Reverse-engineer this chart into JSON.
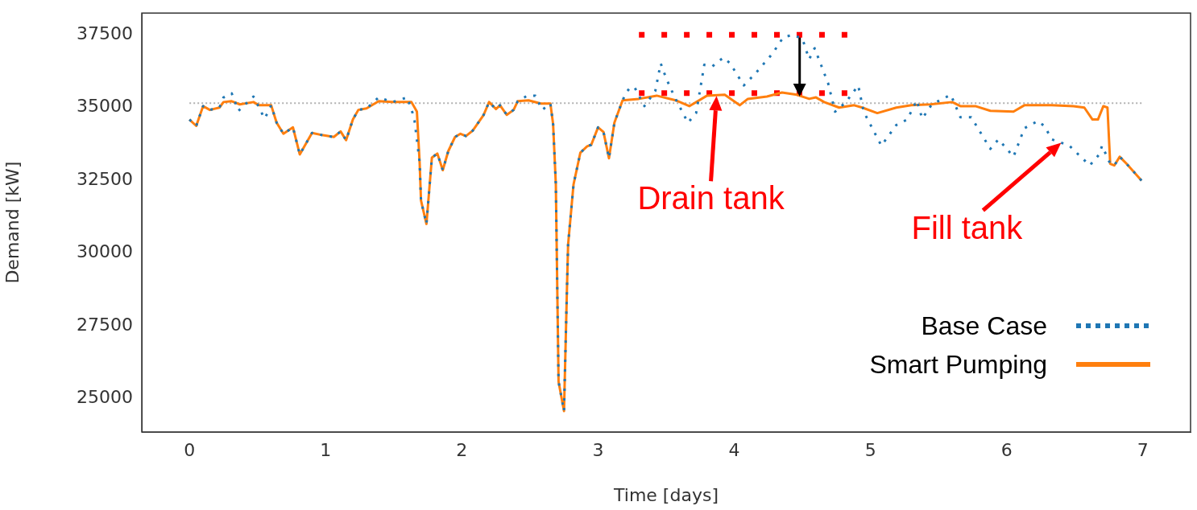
{
  "chart_data": {
    "type": "line",
    "xlabel": "Time [days]",
    "ylabel": "Demand [kW]",
    "xlim": [
      -0.35,
      7.35
    ],
    "xticks": [
      0,
      1,
      2,
      3,
      4,
      5,
      6,
      7
    ],
    "ylim": [
      23850,
      38250
    ],
    "yticks": [
      25000,
      27500,
      30000,
      32500,
      35000,
      37500
    ],
    "grid": false,
    "legend": "lower right",
    "ref_lines": [
      {
        "axis": "y",
        "value": 35150,
        "color": "#b0b0b0",
        "line_style": "dotted"
      }
    ],
    "annotations": [
      {
        "text": "Drain tank",
        "x": 3.87,
        "y": 35400
      },
      {
        "text": "Fill tank",
        "x": 6.4,
        "y": 33790
      }
    ],
    "series": [
      {
        "name": "Base Case",
        "color": "#1f77b4",
        "line_style": "dotted",
        "x": [
          0,
          0.05,
          0.1,
          0.15,
          0.22,
          0.25,
          0.31,
          0.36,
          0.47,
          0.52,
          0.55,
          0.58,
          0.6,
          0.64,
          0.69,
          0.76,
          0.81,
          0.9,
          0.98,
          1.06,
          1.11,
          1.15,
          1.2,
          1.24,
          1.3,
          1.39,
          1.49,
          1.6,
          1.65,
          1.69,
          1.7,
          1.74,
          1.78,
          1.82,
          1.86,
          1.9,
          1.95,
          1.99,
          2.03,
          2.08,
          2.16,
          2.2,
          2.25,
          2.28,
          2.33,
          2.38,
          2.41,
          2.48,
          2.54,
          2.59,
          2.65,
          2.67,
          2.69,
          2.71,
          2.75,
          2.77,
          2.78,
          2.82,
          2.87,
          2.92,
          2.95,
          3,
          3.04,
          3.08,
          3.12,
          3.18,
          3.21,
          3.24,
          3.27,
          3.34,
          3.42,
          3.46,
          3.5,
          3.56,
          3.66,
          3.72,
          3.78,
          3.84,
          3.92,
          3.97,
          4.07,
          4.16,
          4.28,
          4.36,
          4.43,
          4.5,
          4.55,
          4.59,
          4.69,
          4.74,
          4.82,
          4.91,
          4.95,
          5.08,
          5.19,
          5.27,
          5.34,
          5.38,
          5.45,
          5.59,
          5.66,
          5.74,
          5.88,
          5.94,
          6.05,
          6.13,
          6.23,
          6.28,
          6.33,
          6.46,
          6.61,
          6.68,
          6.7,
          6.76,
          6.79,
          6.83,
          6.88,
          6.99
        ],
        "values": [
          34590,
          34370,
          35050,
          34920,
          35000,
          35350,
          35490,
          34890,
          35380,
          34920,
          34620,
          34860,
          35080,
          34480,
          34100,
          34320,
          33390,
          34130,
          34050,
          33990,
          34180,
          33880,
          34590,
          34920,
          34970,
          35350,
          35190,
          35350,
          34650,
          33120,
          31810,
          31000,
          33280,
          33420,
          32850,
          33500,
          33990,
          34100,
          34020,
          34210,
          34750,
          35190,
          34950,
          35080,
          34750,
          34920,
          35220,
          35410,
          35410,
          34920,
          35140,
          34430,
          32360,
          25580,
          24570,
          28460,
          30290,
          32360,
          33450,
          33670,
          33720,
          34320,
          34160,
          33260,
          34480,
          35250,
          35540,
          35710,
          35680,
          35050,
          35570,
          36520,
          36010,
          35380,
          34480,
          34810,
          36470,
          36420,
          36720,
          36520,
          35760,
          36200,
          36850,
          37420,
          37500,
          37370,
          36660,
          37040,
          35820,
          34860,
          35190,
          35760,
          34860,
          33690,
          34400,
          34590,
          35250,
          34620,
          35110,
          35440,
          34670,
          34670,
          33580,
          33910,
          33310,
          34290,
          34540,
          34350,
          33910,
          33690,
          33010,
          33390,
          33690,
          33070,
          33010,
          33310,
          33070,
          32490
        ]
      },
      {
        "name": "Smart Pumping",
        "color": "#ff7f0e",
        "line_style": "solid",
        "x": [
          0,
          0.05,
          0.1,
          0.15,
          0.22,
          0.25,
          0.31,
          0.37,
          0.47,
          0.51,
          0.6,
          0.64,
          0.69,
          0.76,
          0.81,
          0.9,
          0.98,
          1.06,
          1.11,
          1.15,
          1.2,
          1.24,
          1.3,
          1.39,
          1.49,
          1.63,
          1.67,
          1.69,
          1.7,
          1.74,
          1.78,
          1.82,
          1.86,
          1.9,
          1.95,
          1.99,
          2.03,
          2.08,
          2.16,
          2.2,
          2.25,
          2.28,
          2.33,
          2.38,
          2.41,
          2.49,
          2.58,
          2.65,
          2.67,
          2.69,
          2.71,
          2.75,
          2.77,
          2.78,
          2.82,
          2.87,
          2.92,
          2.95,
          3,
          3.04,
          3.08,
          3.12,
          3.18,
          3.3,
          3.43,
          3.57,
          3.67,
          3.8,
          3.93,
          4.04,
          4.1,
          4.24,
          4.35,
          4.46,
          4.55,
          4.6,
          4.66,
          4.77,
          4.88,
          4.94,
          5.05,
          5.19,
          5.3,
          5.44,
          5.6,
          5.66,
          5.77,
          5.88,
          6.05,
          6.13,
          6.33,
          6.49,
          6.57,
          6.63,
          6.67,
          6.71,
          6.74,
          6.76,
          6.79,
          6.83,
          6.88,
          6.99
        ],
        "values": [
          34590,
          34370,
          35050,
          34920,
          35000,
          35190,
          35220,
          35110,
          35190,
          35080,
          35080,
          34480,
          34100,
          34320,
          33390,
          34130,
          34050,
          33990,
          34180,
          33880,
          34590,
          34920,
          34970,
          35220,
          35190,
          35190,
          34860,
          33120,
          31810,
          31000,
          33280,
          33420,
          32850,
          33500,
          33990,
          34100,
          34020,
          34210,
          34750,
          35190,
          34950,
          35080,
          34750,
          34920,
          35220,
          35250,
          35140,
          35140,
          34430,
          32360,
          25580,
          24570,
          28460,
          30290,
          32360,
          33450,
          33670,
          33720,
          34320,
          34160,
          33260,
          34480,
          35250,
          35300,
          35410,
          35250,
          35050,
          35410,
          35440,
          35080,
          35300,
          35380,
          35520,
          35440,
          35300,
          35350,
          35190,
          35000,
          35080,
          35000,
          34810,
          35000,
          35080,
          35110,
          35190,
          35050,
          35050,
          34890,
          34860,
          35080,
          35080,
          35050,
          35000,
          34590,
          34590,
          35050,
          35000,
          33070,
          33010,
          33310,
          33070,
          32490
        ]
      },
      {
        "color": "#ff0000",
        "line_style": "dotted",
        "x": [
          3.3,
          4.83
        ],
        "values": [
          37500,
          37500
        ]
      },
      {
        "color": "#ff0000",
        "line_style": "dotted",
        "x": [
          3.3,
          4.83
        ],
        "values": [
          35500,
          35500
        ]
      },
      {
        "color": "#000000",
        "line_style": "solid",
        "x": [
          4.48,
          4.48
        ],
        "values": [
          37500,
          35600
        ]
      }
    ]
  }
}
